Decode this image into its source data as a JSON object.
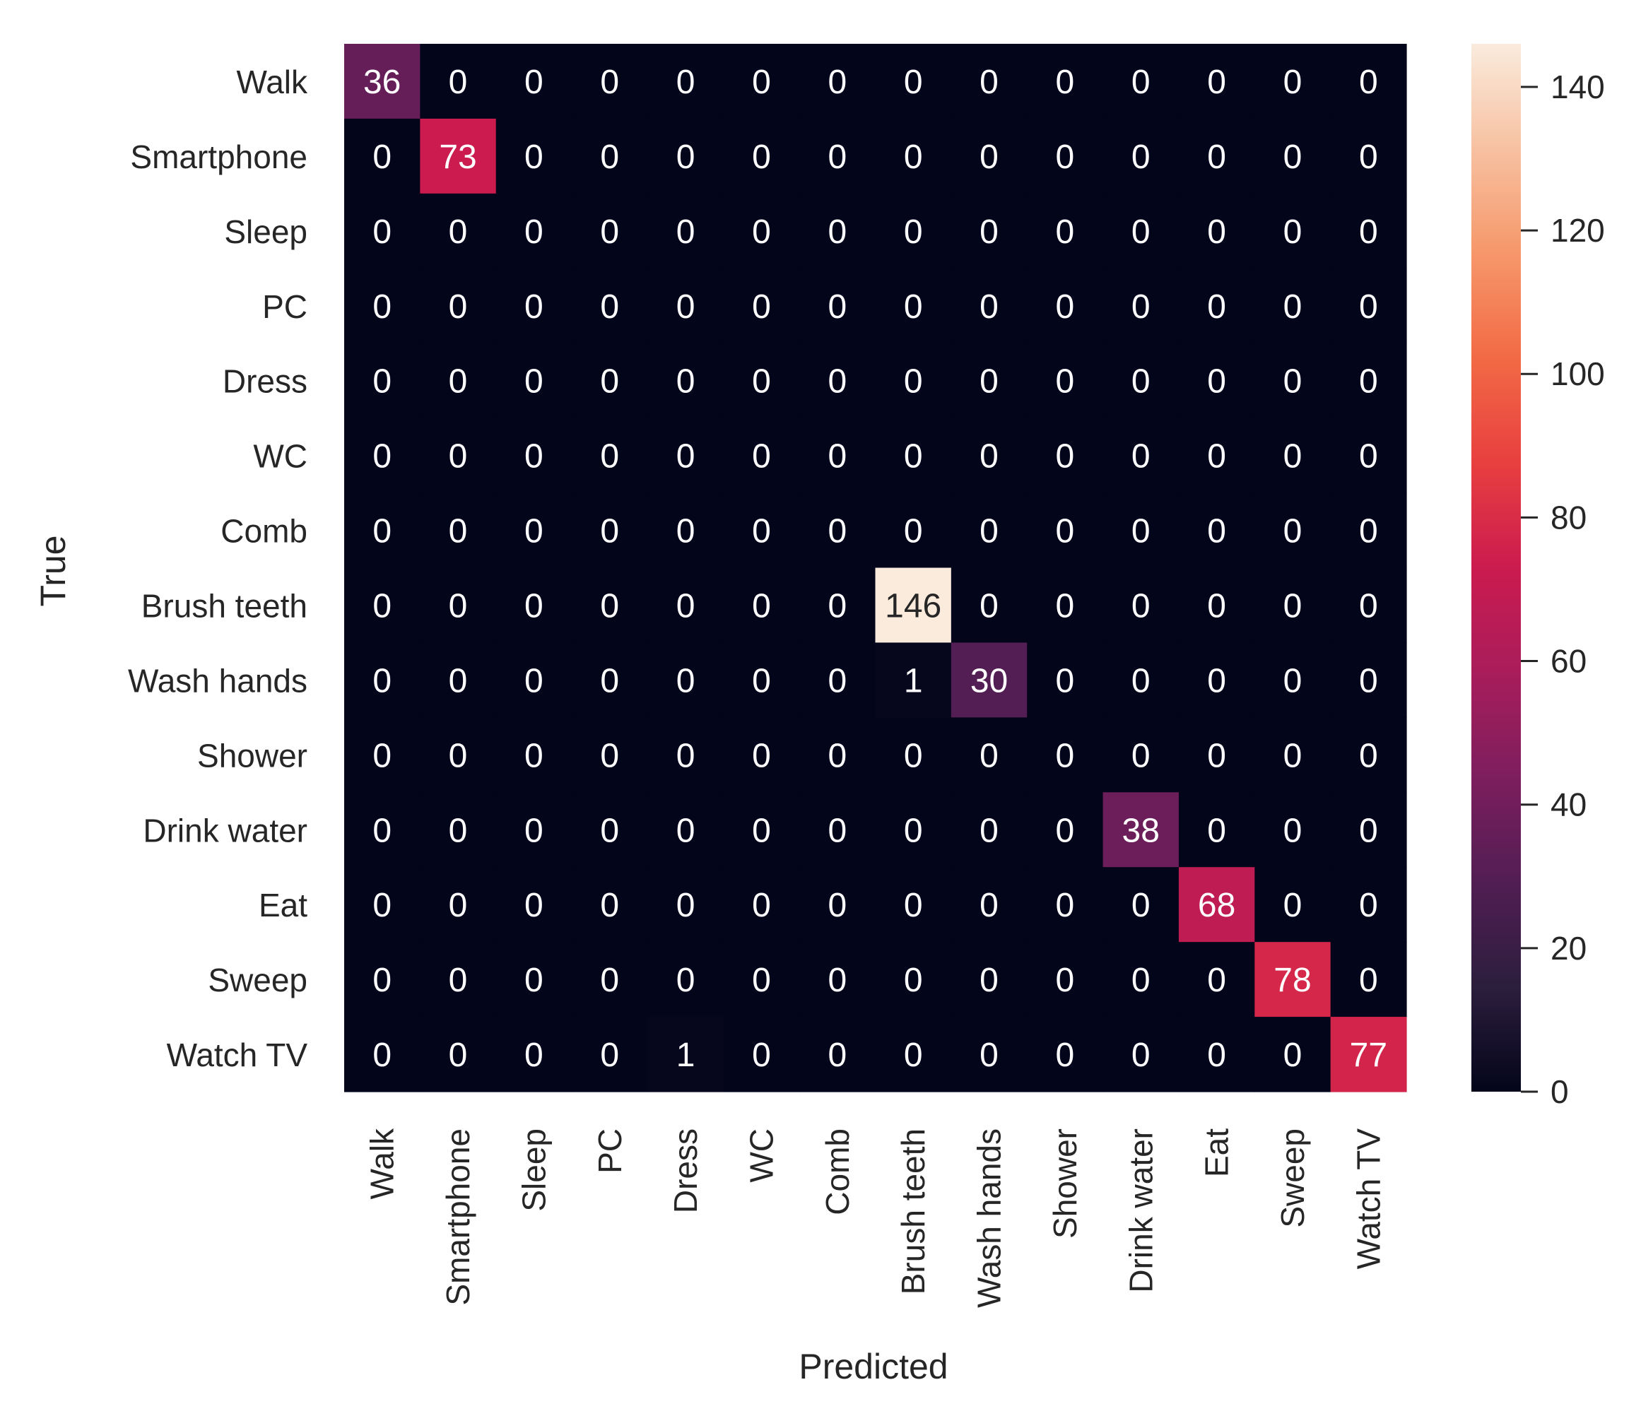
{
  "chart_data": {
    "type": "heatmap",
    "x_categories": [
      "Walk",
      "Smartphone",
      "Sleep",
      "PC",
      "Dress",
      "WC",
      "Comb",
      "Brush teeth",
      "Wash hands",
      "Shower",
      "Drink water",
      "Eat",
      "Sweep",
      "Watch TV"
    ],
    "y_categories": [
      "Walk",
      "Smartphone",
      "Sleep",
      "PC",
      "Dress",
      "WC",
      "Comb",
      "Brush teeth",
      "Wash hands",
      "Shower",
      "Drink water",
      "Eat",
      "Sweep",
      "Watch TV"
    ],
    "values": [
      [
        36,
        0,
        0,
        0,
        0,
        0,
        0,
        0,
        0,
        0,
        0,
        0,
        0,
        0
      ],
      [
        0,
        73,
        0,
        0,
        0,
        0,
        0,
        0,
        0,
        0,
        0,
        0,
        0,
        0
      ],
      [
        0,
        0,
        0,
        0,
        0,
        0,
        0,
        0,
        0,
        0,
        0,
        0,
        0,
        0
      ],
      [
        0,
        0,
        0,
        0,
        0,
        0,
        0,
        0,
        0,
        0,
        0,
        0,
        0,
        0
      ],
      [
        0,
        0,
        0,
        0,
        0,
        0,
        0,
        0,
        0,
        0,
        0,
        0,
        0,
        0
      ],
      [
        0,
        0,
        0,
        0,
        0,
        0,
        0,
        0,
        0,
        0,
        0,
        0,
        0,
        0
      ],
      [
        0,
        0,
        0,
        0,
        0,
        0,
        0,
        0,
        0,
        0,
        0,
        0,
        0,
        0
      ],
      [
        0,
        0,
        0,
        0,
        0,
        0,
        0,
        146,
        0,
        0,
        0,
        0,
        0,
        0
      ],
      [
        0,
        0,
        0,
        0,
        0,
        0,
        0,
        1,
        30,
        0,
        0,
        0,
        0,
        0
      ],
      [
        0,
        0,
        0,
        0,
        0,
        0,
        0,
        0,
        0,
        0,
        0,
        0,
        0,
        0
      ],
      [
        0,
        0,
        0,
        0,
        0,
        0,
        0,
        0,
        0,
        0,
        38,
        0,
        0,
        0
      ],
      [
        0,
        0,
        0,
        0,
        0,
        0,
        0,
        0,
        0,
        0,
        0,
        68,
        0,
        0
      ],
      [
        0,
        0,
        0,
        0,
        0,
        0,
        0,
        0,
        0,
        0,
        0,
        0,
        78,
        0
      ],
      [
        0,
        0,
        0,
        0,
        1,
        0,
        0,
        0,
        0,
        0,
        0,
        0,
        0,
        77
      ]
    ],
    "xlabel": "Predicted",
    "ylabel": "True",
    "colorbar": {
      "range": [
        0,
        146
      ],
      "ticks": [
        0,
        20,
        40,
        60,
        80,
        100,
        120,
        140
      ],
      "colormap": [
        "#03051a",
        "#2c1e3d",
        "#511e53",
        "#7d1e5e",
        "#a91d5b",
        "#cb1b4f",
        "#e83f3f",
        "#f26a45",
        "#f6976a",
        "#f7c1a1",
        "#faebdd"
      ]
    },
    "annotation_text_colors": {
      "dark_cells": "#ffffff",
      "light_cells": "#262626"
    }
  }
}
